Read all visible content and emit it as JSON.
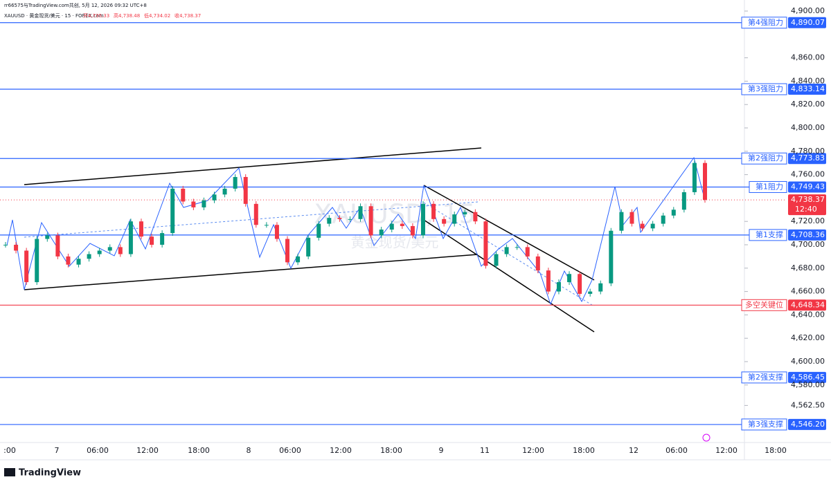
{
  "chart_data": {
    "type": "candlestick",
    "credit": "rr66575与TradingView.com共创, 5月 12, 2026 09:32 UTC+8",
    "symbol": "XAUUSD · 黄金现货/美元 · 15 · FOREX.com",
    "ohlc_labels": [
      "开4,735.33",
      "高4,738.48",
      "低4,734.02",
      "收4,738.37"
    ],
    "watermark": "XAUUSD, 15",
    "watermark_sub": "黄金现货/美元",
    "brand": "TradingView",
    "categories": [
      ":00",
      "7",
      "06:00",
      "12:00",
      "18:00",
      "8",
      "06:00",
      "12:00",
      "18:00",
      "9",
      "11",
      "12:00",
      "18:00",
      "12",
      "06:00",
      "12:00",
      "18:00"
    ],
    "closes": [
      4700,
      4695,
      4668,
      4705,
      4708,
      4690,
      4683,
      4688,
      4692,
      4695,
      4698,
      4692,
      4720,
      4707,
      4700,
      4710,
      4748,
      4737,
      4732,
      4738,
      4743,
      4748,
      4758,
      4735,
      4717,
      4717,
      4705,
      4685,
      4690,
      4706,
      4718,
      4723,
      4722,
      4722,
      4733,
      4708,
      4713,
      4718,
      4716,
      4708,
      4735,
      4722,
      4718,
      4726,
      4728,
      4720,
      4682,
      4692,
      4698,
      4698,
      4690,
      4678,
      4660,
      4668,
      4675,
      4658,
      4660,
      4667,
      4712,
      4728,
      4718,
      4714,
      4718,
      4725,
      4730,
      4745,
      4770,
      4738.37
    ],
    "up_color": "#089981",
    "down_color": "#f23645",
    "ylim": [
      4520,
      4900
    ],
    "yticks": [
      {
        "value": 4900,
        "label": "4,900.00"
      },
      {
        "value": 4860,
        "label": "4,860.00"
      },
      {
        "value": 4840,
        "label": "4,840.00"
      },
      {
        "value": 4820,
        "label": "4,820.00"
      },
      {
        "value": 4800,
        "label": "4,800.00"
      },
      {
        "value": 4780,
        "label": "4,780.00"
      },
      {
        "value": 4760,
        "label": "4,760.00"
      },
      {
        "value": 4720,
        "label": "4,720.00"
      },
      {
        "value": 4700,
        "label": "4,700.00"
      },
      {
        "value": 4680,
        "label": "4,680.00"
      },
      {
        "value": 4660,
        "label": "4,660.00"
      },
      {
        "value": 4640,
        "label": "4,640.00"
      },
      {
        "value": 4620,
        "label": "4,620.00"
      },
      {
        "value": 4600,
        "label": "4,600.00"
      },
      {
        "value": 4580,
        "label": "4,580.00"
      },
      {
        "value": 4562.5,
        "label": "4,562.50"
      }
    ],
    "levels": [
      {
        "name": "第4强阻力",
        "value": 4890.07,
        "label": "4,890.07",
        "color": "#2962ff"
      },
      {
        "name": "第3强阻力",
        "value": 4833.14,
        "label": "4,833.14",
        "color": "#2962ff"
      },
      {
        "name": "第2强阻力",
        "value": 4773.83,
        "label": "4,773.83",
        "color": "#2962ff"
      },
      {
        "name": "第1阻力",
        "value": 4749.43,
        "label": "4,749.43",
        "color": "#2962ff"
      },
      {
        "name": "第1支撑",
        "value": 4708.36,
        "label": "4,708.36",
        "color": "#2962ff"
      },
      {
        "name": "多空关键位",
        "value": 4648.34,
        "label": "4,648.34",
        "color": "#f23645"
      },
      {
        "name": "第2强支撑",
        "value": 4586.45,
        "label": "4,586.45",
        "color": "#2962ff"
      },
      {
        "name": "第3强支撑",
        "value": 4546.2,
        "label": "4,546.20",
        "color": "#2962ff"
      }
    ],
    "last_price": {
      "value": 4738.37,
      "label": "4,738.37"
    },
    "countdown": "12:40"
  }
}
